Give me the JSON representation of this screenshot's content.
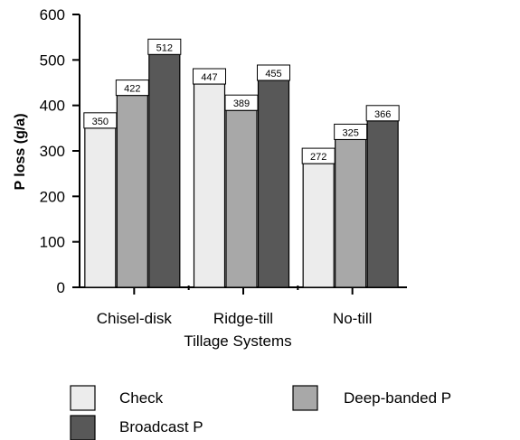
{
  "chart_data": {
    "type": "bar",
    "title": "",
    "xlabel": "Tillage Systems",
    "ylabel": "P loss (g/a)",
    "ylim": [
      0,
      600
    ],
    "yticks": [
      0,
      100,
      200,
      300,
      400,
      500,
      600
    ],
    "categories": [
      "Chisel-disk",
      "Ridge-till",
      "No-till"
    ],
    "series": [
      {
        "name": "Check",
        "values": [
          350,
          447,
          272
        ],
        "color": "#ececec"
      },
      {
        "name": "Deep-banded P",
        "values": [
          422,
          389,
          325
        ],
        "color": "#a8a8a8"
      },
      {
        "name": "Broadcast P",
        "values": [
          512,
          455,
          366
        ],
        "color": "#585858"
      }
    ],
    "data_labels": true,
    "grid": false,
    "legend_position": "bottom"
  }
}
